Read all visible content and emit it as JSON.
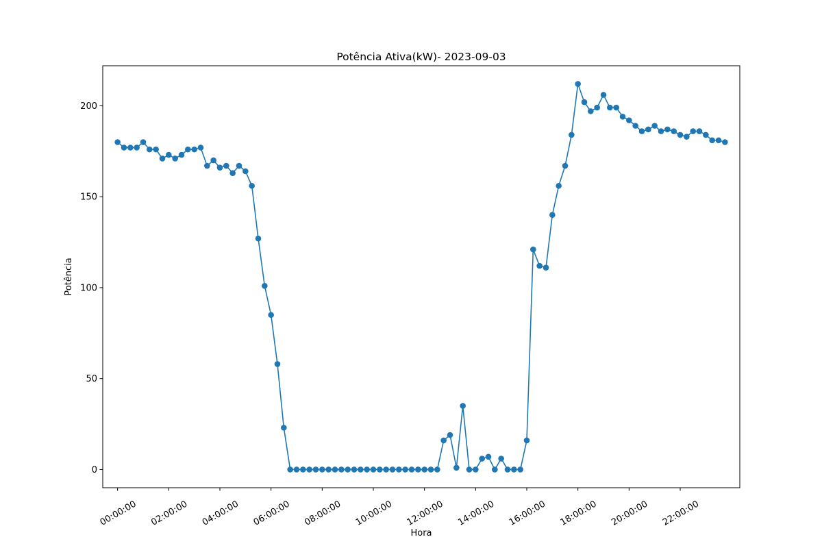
{
  "chart_data": {
    "type": "line",
    "title": "Potência Ativa(kW)- 2023-09-03",
    "xlabel": "Hora",
    "ylabel": "Potência",
    "x_unit": "hours",
    "x_step_minutes": 15,
    "x_start": "00:00:00",
    "xlim": [
      -0.58,
      24.33
    ],
    "ylim": [
      -10,
      222
    ],
    "xticks": [
      0,
      2,
      4,
      6,
      8,
      10,
      12,
      14,
      16,
      18,
      20,
      22
    ],
    "xtick_labels": [
      "00:00:00",
      "02:00:00",
      "04:00:00",
      "06:00:00",
      "08:00:00",
      "10:00:00",
      "12:00:00",
      "14:00:00",
      "16:00:00",
      "18:00:00",
      "20:00:00",
      "22:00:00"
    ],
    "yticks": [
      0,
      50,
      100,
      150,
      200
    ],
    "ytick_labels": [
      "0",
      "50",
      "100",
      "150",
      "200"
    ],
    "series": [
      {
        "color": "#1f77b4",
        "marker": "circle",
        "values": [
          180,
          177,
          177,
          177,
          180,
          176,
          176,
          171,
          173,
          171,
          173,
          176,
          176,
          177,
          167,
          170,
          166,
          167,
          163,
          167,
          164,
          156,
          127,
          101,
          85,
          58,
          23,
          0,
          0,
          0,
          0,
          0,
          0,
          0,
          0,
          0,
          0,
          0,
          0,
          0,
          0,
          0,
          0,
          0,
          0,
          0,
          0,
          0,
          0,
          0,
          0,
          16,
          19,
          1,
          35,
          0,
          0,
          6,
          7,
          0,
          6,
          0,
          0,
          0,
          16,
          121,
          112,
          111,
          140,
          156,
          167,
          184,
          212,
          202,
          197,
          199,
          206,
          199,
          199,
          194,
          192,
          189,
          186,
          187,
          189,
          186,
          187,
          186,
          184,
          183,
          186,
          186,
          184,
          181,
          181,
          180
        ]
      }
    ]
  }
}
